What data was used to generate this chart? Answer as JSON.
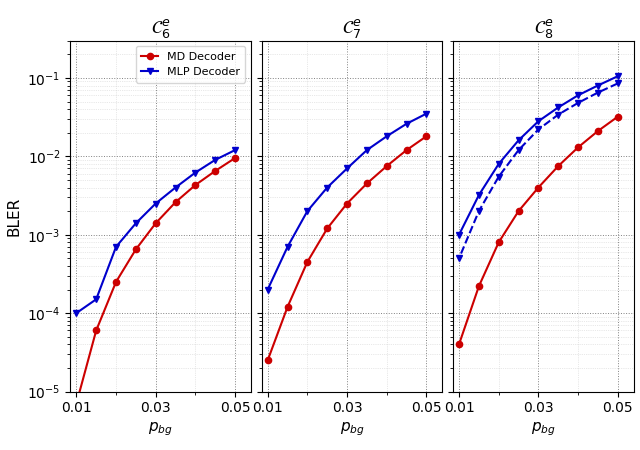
{
  "title1": "$\\mathcal{C}_6^e$",
  "title2": "$\\mathcal{C}_7^e$",
  "title3": "$\\mathcal{C}_8^e$",
  "xlabel": "$p_{bg}$",
  "ylabel": "BLER",
  "c6_md_x": [
    0.05,
    0.045,
    0.04,
    0.035,
    0.03,
    0.025,
    0.02,
    0.015,
    0.01
  ],
  "c6_md_y": [
    0.0095,
    0.0065,
    0.0043,
    0.0026,
    0.0014,
    0.00065,
    0.00025,
    6e-05,
    7e-06
  ],
  "c6_mlp_x": [
    0.05,
    0.045,
    0.04,
    0.035,
    0.03,
    0.025,
    0.02,
    0.015,
    0.01
  ],
  "c6_mlp_y": [
    0.012,
    0.009,
    0.0062,
    0.004,
    0.0025,
    0.0014,
    0.0007,
    0.00015,
    0.0001
  ],
  "c7_md_x": [
    0.05,
    0.045,
    0.04,
    0.035,
    0.03,
    0.025,
    0.02,
    0.015,
    0.01
  ],
  "c7_md_y": [
    0.018,
    0.012,
    0.0075,
    0.0045,
    0.0025,
    0.0012,
    0.00045,
    0.00012,
    2.5e-05
  ],
  "c7_mlp_x": [
    0.05,
    0.045,
    0.04,
    0.035,
    0.03,
    0.025,
    0.02,
    0.015,
    0.01
  ],
  "c7_mlp_y": [
    0.035,
    0.026,
    0.018,
    0.012,
    0.007,
    0.004,
    0.002,
    0.0007,
    0.0002
  ],
  "c8_md_x": [
    0.05,
    0.045,
    0.04,
    0.035,
    0.03,
    0.025,
    0.02,
    0.015,
    0.01
  ],
  "c8_md_y": [
    0.032,
    0.021,
    0.013,
    0.0075,
    0.004,
    0.002,
    0.0008,
    0.00022,
    4e-05
  ],
  "c8_mlp_solid_x": [
    0.05,
    0.045,
    0.04,
    0.035,
    0.03,
    0.025,
    0.02,
    0.015,
    0.01
  ],
  "c8_mlp_solid_y": [
    0.105,
    0.08,
    0.06,
    0.042,
    0.028,
    0.016,
    0.008,
    0.0032,
    0.001
  ],
  "c8_mlp_dash_x": [
    0.05,
    0.045,
    0.04,
    0.035,
    0.03,
    0.025,
    0.02,
    0.015,
    0.01
  ],
  "c8_mlp_dash_y": [
    0.085,
    0.065,
    0.048,
    0.034,
    0.022,
    0.012,
    0.0055,
    0.002,
    0.0005
  ],
  "color_md": "#cc0000",
  "color_mlp": "#0000cc",
  "label_md": "MD Decoder",
  "label_mlp": "MLP Decoder",
  "ylim": [
    1e-05,
    0.3
  ],
  "xlim_left": 0.054,
  "xlim_right": 0.0085
}
